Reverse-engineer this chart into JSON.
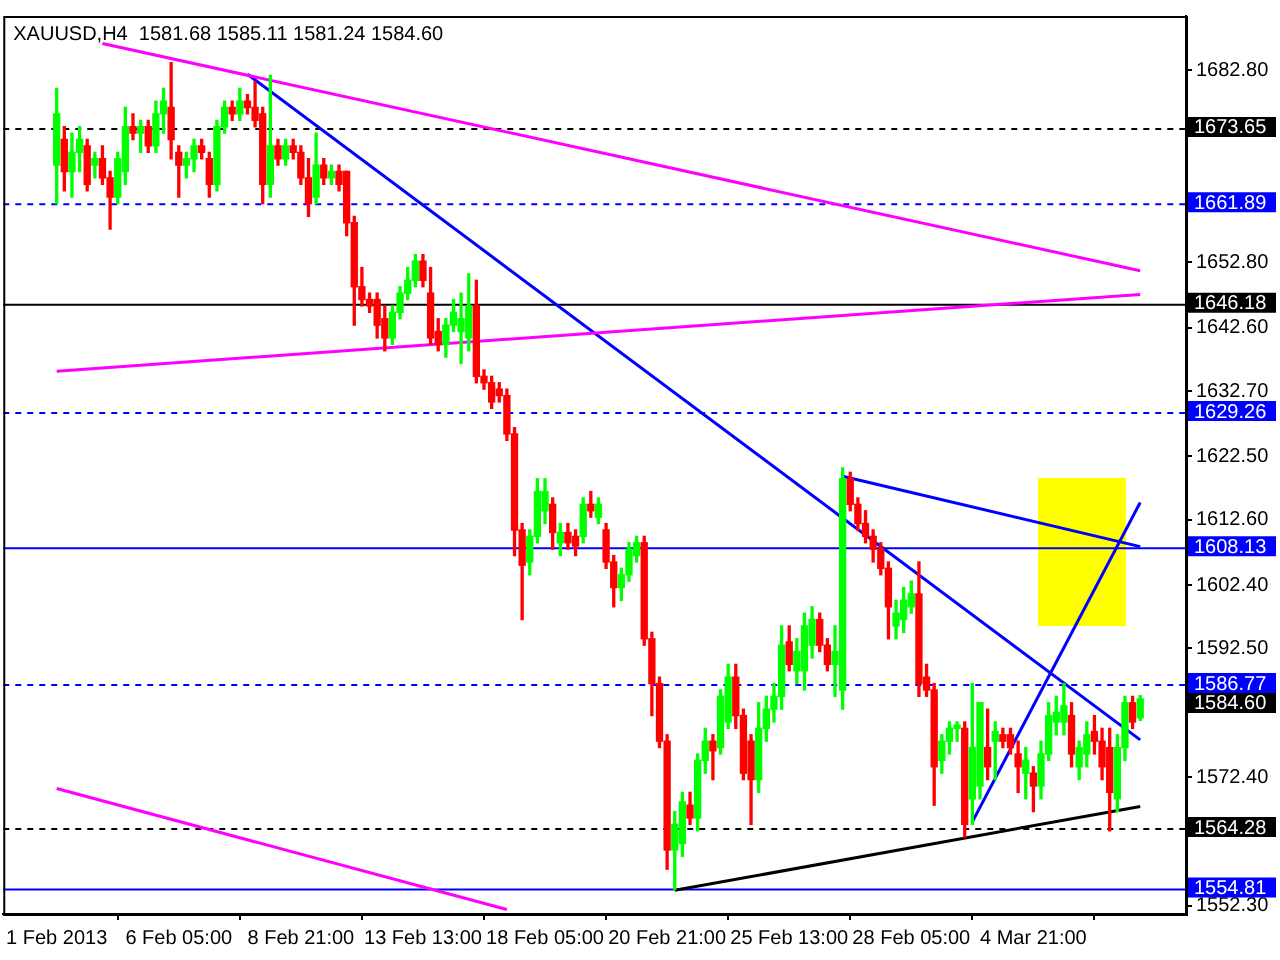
{
  "chart_data": {
    "type": "candlestick",
    "title": "XAUUSD,H4  1581.68 1585.11 1581.24 1584.60",
    "categories": [
      "1 Feb 2013",
      null,
      null,
      null,
      null,
      null,
      null,
      null,
      null,
      null,
      null,
      null,
      null,
      null,
      null,
      null,
      "6 Feb 05:00",
      null,
      null,
      null,
      null,
      null,
      null,
      null,
      null,
      null,
      null,
      null,
      null,
      null,
      null,
      null,
      "8 Feb 21:00",
      null,
      null,
      null,
      null,
      null,
      null,
      null,
      null,
      null,
      null,
      null,
      null,
      null,
      null,
      null,
      "13 Feb 13:00",
      null,
      null,
      null,
      null,
      null,
      null,
      null,
      null,
      null,
      null,
      null,
      null,
      null,
      null,
      null,
      "18 Feb 05:00",
      null,
      null,
      null,
      null,
      null,
      null,
      null,
      null,
      null,
      null,
      null,
      null,
      null,
      null,
      null,
      "20 Feb 21:00",
      null,
      null,
      null,
      null,
      null,
      null,
      null,
      null,
      null,
      null,
      null,
      null,
      null,
      null,
      null,
      "25 Feb 13:00",
      null,
      null,
      null,
      null,
      null,
      null,
      null,
      null,
      null,
      null,
      null,
      null,
      null,
      null,
      null,
      "28 Feb 05:00",
      null,
      null,
      null,
      null,
      null,
      null,
      null,
      null,
      null,
      null,
      null,
      null,
      null,
      null,
      null,
      "4 Mar 21:00",
      null,
      null,
      null,
      null,
      null,
      null,
      null,
      null,
      null,
      null,
      null,
      null,
      null,
      null
    ],
    "colors": [
      "#00ff00",
      "#ff0000",
      "#00ff00",
      "#00ff00",
      "#ff0000",
      "#00ff00",
      "#ff0000",
      "#ff0000",
      "#00ff00",
      "#00ff00",
      "#ff0000",
      "#00ff00",
      "#ff0000",
      "#00ff00",
      "#00ff00",
      "#ff0000",
      "#ff0000",
      "#00ff00",
      "#00ff00",
      "#ff0000",
      "#ff0000",
      "#00ff00",
      "#00ff00",
      "#ff0000",
      "#00ff00",
      "#ff0000",
      "#ff0000",
      "#ff0000",
      "#00ff00",
      "#ff0000",
      "#00ff00",
      "#ff0000",
      "#ff0000",
      "#ff0000",
      "#00ff00",
      "#ff0000",
      "#00ff00",
      "#ff0000",
      "#ff0000",
      "#ff0000",
      "#ff0000",
      "#ff0000",
      "#ff0000",
      "#ff0000",
      "#00ff00",
      "#00ff00",
      "#00ff00",
      "#00ff00",
      "#ff0000",
      "#ff0000",
      "#ff0000",
      "#00ff00",
      "#00ff00",
      "#00ff00",
      "#00ff00",
      "#ff0000",
      "#ff0000",
      "#ff0000",
      "#ff0000",
      "#ff0000",
      "#ff0000",
      "#ff0000",
      "#00ff00",
      "#00ff00",
      "#00ff00",
      "#ff0000",
      "#00ff00",
      "#ff0000",
      "#ff0000",
      "#00ff00",
      "#ff0000",
      "#00ff00",
      "#ff0000",
      "#ff0000",
      "#00ff00",
      "#00ff00",
      "#00ff00",
      "#ff0000",
      "#ff0000",
      "#ff0000",
      "#ff0000",
      "#00ff00",
      "#00ff00",
      "#ff0000",
      "#00ff00",
      "#00ff00",
      "#ff0000",
      "#00ff00",
      "#00ff00",
      "#ff0000",
      "#ff0000",
      "#ff0000",
      "#00ff00",
      "#00ff00",
      "#00ff00",
      "#00ff00",
      "#ff0000",
      "#00ff00",
      "#00ff00",
      "#00ff00",
      "#ff0000",
      "#ff0000",
      "#00ff00",
      "#00ff00",
      "#ff0000",
      "#ff0000",
      "#ff0000",
      "#ff0000",
      "#ff0000",
      "#ff0000",
      "#00ff00",
      "#00ff00",
      "#00ff00",
      "#ff0000",
      "#ff0000",
      "#ff0000",
      "#00ff00",
      "#00ff00",
      "#00ff00",
      "#ff0000",
      "#00ff00",
      "#00ff00",
      "#ff0000",
      "#00ff00",
      "#ff0000",
      "#ff0000",
      "#ff0000",
      "#00ff00",
      "#ff0000",
      "#00ff00",
      "#00ff00",
      "#00ff00",
      "#00ff00",
      "#ff0000",
      "#00ff00",
      "#00ff00",
      "#ff0000",
      "#ff0000",
      "#ff0000",
      "#00ff00",
      "#00ff00",
      "#ff0000",
      "#00ff00"
    ],
    "ohlc": [
      [
        1668,
        1680,
        1662,
        1676
      ],
      [
        1672,
        1674,
        1664,
        1667
      ],
      [
        1667,
        1673,
        1663,
        1670
      ],
      [
        1670,
        1674,
        1667,
        1672
      ],
      [
        1671,
        1672,
        1664,
        1665
      ],
      [
        1668,
        1670,
        1666,
        1669
      ],
      [
        1669,
        1671,
        1665,
        1666
      ],
      [
        1666,
        1667,
        1658,
        1663
      ],
      [
        1663,
        1670,
        1662,
        1669
      ],
      [
        1667,
        1677,
        1665,
        1674
      ],
      [
        1674,
        1676,
        1672,
        1673
      ],
      [
        1673,
        1675,
        1670,
        1674
      ],
      [
        1674,
        1675,
        1670,
        1671
      ],
      [
        1671,
        1678,
        1670,
        1676
      ],
      [
        1676,
        1680,
        1673,
        1678
      ],
      [
        1677,
        1684,
        1669,
        1672
      ],
      [
        1670,
        1671,
        1663,
        1668
      ],
      [
        1668,
        1670,
        1666,
        1669
      ],
      [
        1669,
        1672,
        1667,
        1671
      ],
      [
        1671,
        1672,
        1669,
        1670
      ],
      [
        1669,
        1670,
        1663,
        1665
      ],
      [
        1665,
        1675,
        1664,
        1674
      ],
      [
        1674,
        1678,
        1673,
        1677
      ],
      [
        1677,
        1678,
        1675,
        1676
      ],
      [
        1676,
        1680,
        1675,
        1678
      ],
      [
        1678,
        1679,
        1676,
        1677
      ],
      [
        1677,
        1681,
        1674,
        1675
      ],
      [
        1676,
        1677,
        1662,
        1665
      ],
      [
        1665,
        1682,
        1663,
        1671
      ],
      [
        1671,
        1672,
        1668,
        1669
      ],
      [
        1669,
        1672,
        1668,
        1671
      ],
      [
        1671,
        1672,
        1669,
        1670
      ],
      [
        1670,
        1671,
        1665,
        1666
      ],
      [
        1666,
        1669,
        1660,
        1662
      ],
      [
        1663,
        1673,
        1662,
        1668
      ],
      [
        1668,
        1669,
        1665,
        1666
      ],
      [
        1666,
        1668,
        1665,
        1667
      ],
      [
        1667,
        1668,
        1664,
        1665
      ],
      [
        1667,
        1667,
        1657,
        1659
      ],
      [
        1659,
        1660,
        1643,
        1649
      ],
      [
        1649,
        1652,
        1646,
        1647
      ],
      [
        1647,
        1648,
        1645,
        1646
      ],
      [
        1647,
        1648,
        1641,
        1643
      ],
      [
        1644,
        1646,
        1639,
        1641
      ],
      [
        1641,
        1646,
        1640,
        1645
      ],
      [
        1645,
        1649,
        1644,
        1648
      ],
      [
        1648,
        1652,
        1647,
        1650
      ],
      [
        1650,
        1654,
        1649,
        1653
      ],
      [
        1653,
        1654,
        1649,
        1650
      ],
      [
        1648,
        1652,
        1640,
        1641
      ],
      [
        1642,
        1644,
        1639,
        1640
      ],
      [
        1640,
        1644,
        1638,
        1643
      ],
      [
        1643,
        1647,
        1642,
        1645
      ],
      [
        1642,
        1648,
        1637,
        1644
      ],
      [
        1641,
        1651,
        1639,
        1646
      ],
      [
        1646,
        1650,
        1634,
        1635
      ],
      [
        1635,
        1636,
        1633,
        1634
      ],
      [
        1634,
        1635,
        1630,
        1631
      ],
      [
        1633,
        1634,
        1631,
        1632
      ],
      [
        1632,
        1633,
        1625,
        1626
      ],
      [
        1626,
        1627,
        1607,
        1611
      ],
      [
        1611,
        1612,
        1597,
        1605.5
      ],
      [
        1606,
        1611,
        1604,
        1610
      ],
      [
        1610,
        1619,
        1609,
        1617
      ],
      [
        1614,
        1619,
        1612,
        1617
      ],
      [
        1615,
        1616,
        1608,
        1610.6
      ],
      [
        1609,
        1612,
        1607,
        1610.6
      ],
      [
        1610.6,
        1612,
        1608,
        1609
      ],
      [
        1610,
        1611,
        1607,
        1608.5
      ],
      [
        1610,
        1616,
        1609,
        1615
      ],
      [
        1615,
        1617,
        1613,
        1614
      ],
      [
        1613,
        1616,
        1612,
        1615
      ],
      [
        1611,
        1612,
        1605,
        1606
      ],
      [
        1606,
        1607,
        1599,
        1602
      ],
      [
        1602,
        1605,
        1600,
        1604
      ],
      [
        1604,
        1609,
        1603,
        1608
      ],
      [
        1607,
        1610,
        1606,
        1609
      ],
      [
        1609,
        1610,
        1593,
        1594
      ],
      [
        1594,
        1595,
        1582,
        1587
      ],
      [
        1587,
        1588,
        1577,
        1578
      ],
      [
        1578,
        1579,
        1558,
        1561
      ],
      [
        1561,
        1567,
        1554.8,
        1565
      ],
      [
        1562,
        1570,
        1560,
        1568.5
      ],
      [
        1568,
        1570,
        1565,
        1566
      ],
      [
        1566,
        1576,
        1564,
        1575
      ],
      [
        1575,
        1580,
        1573,
        1578
      ],
      [
        1578,
        1579,
        1572,
        1576.5
      ],
      [
        1577,
        1586,
        1576,
        1585
      ],
      [
        1581,
        1590,
        1580,
        1588
      ],
      [
        1588,
        1590,
        1580,
        1582
      ],
      [
        1582,
        1583,
        1572,
        1573
      ],
      [
        1578,
        1579,
        1565,
        1572
      ],
      [
        1572,
        1584,
        1570,
        1580
      ],
      [
        1580,
        1585,
        1578,
        1583
      ],
      [
        1583,
        1587,
        1581,
        1585
      ],
      [
        1585,
        1596,
        1583,
        1593
      ],
      [
        1593.5,
        1596,
        1589,
        1590
      ],
      [
        1589,
        1594,
        1587,
        1592
      ],
      [
        1589,
        1598,
        1586,
        1596
      ],
      [
        1593,
        1599,
        1591,
        1597
      ],
      [
        1597,
        1598,
        1592,
        1593
      ],
      [
        1593,
        1594,
        1589,
        1590
      ],
      [
        1590,
        1596,
        1585,
        1592
      ],
      [
        1586,
        1620.7,
        1583,
        1619
      ],
      [
        1619,
        1620,
        1614,
        1615
      ],
      [
        1615,
        1616,
        1611,
        1612
      ],
      [
        1612,
        1614,
        1609,
        1610
      ],
      [
        1610,
        1611,
        1606,
        1608
      ],
      [
        1608,
        1609,
        1604,
        1605
      ],
      [
        1605,
        1606,
        1594,
        1599
      ],
      [
        1596,
        1600,
        1594,
        1598
      ],
      [
        1597,
        1602,
        1595,
        1600
      ],
      [
        1599,
        1603,
        1598,
        1601
      ],
      [
        1601,
        1606,
        1585,
        1587
      ],
      [
        1588,
        1590,
        1585,
        1586
      ],
      [
        1586,
        1587,
        1568,
        1574
      ],
      [
        1575,
        1579,
        1573,
        1578
      ],
      [
        1578,
        1581,
        1576,
        1580
      ],
      [
        1580,
        1581,
        1578,
        1580.5
      ],
      [
        1580,
        1581,
        1563,
        1565
      ],
      [
        1569,
        1587,
        1565,
        1577
      ],
      [
        1571,
        1584,
        1569,
        1584
      ],
      [
        1577,
        1583,
        1572,
        1574
      ],
      [
        1578,
        1581,
        1572,
        1579.5
      ],
      [
        1579,
        1580,
        1577,
        1578
      ],
      [
        1579,
        1580,
        1576,
        1577
      ],
      [
        1576,
        1578,
        1570,
        1574
      ],
      [
        1573,
        1577,
        1569,
        1575
      ],
      [
        1573,
        1574,
        1567,
        1571
      ],
      [
        1571,
        1578,
        1569,
        1576
      ],
      [
        1576,
        1584,
        1575,
        1582
      ],
      [
        1581,
        1585,
        1579,
        1582.5
      ],
      [
        1581,
        1587,
        1579,
        1583.5
      ],
      [
        1582,
        1584,
        1574,
        1576
      ],
      [
        1574,
        1578,
        1572,
        1577
      ],
      [
        1576,
        1581,
        1574,
        1579
      ],
      [
        1579.5,
        1582,
        1576,
        1578
      ],
      [
        1578,
        1580,
        1572,
        1574
      ],
      [
        1577,
        1580,
        1564,
        1570
      ],
      [
        1569,
        1579,
        1567,
        1577
      ],
      [
        1577,
        1585,
        1575,
        1584
      ],
      [
        1584,
        1585,
        1580,
        1581
      ],
      [
        1581.68,
        1585.11,
        1581.24,
        1584.6
      ]
    ],
    "series": [
      {
        "type": "line",
        "color": "#ff00ff",
        "values": [
          null,
          null,
          null,
          null,
          null,
          null,
          1687.0,
          null,
          null,
          null,
          null,
          null,
          null,
          null,
          null,
          null,
          null,
          null,
          null,
          null,
          null,
          null,
          null,
          null,
          null,
          null,
          null,
          null,
          null,
          null,
          null,
          null,
          null,
          null,
          null,
          null,
          null,
          null,
          null,
          null,
          null,
          null,
          null,
          null,
          null,
          null,
          null,
          null,
          null,
          null,
          null,
          null,
          null,
          null,
          null,
          null,
          null,
          null,
          null,
          null,
          null,
          null,
          null,
          null,
          null,
          null,
          null,
          null,
          null,
          null,
          null,
          null,
          null,
          null,
          null,
          null,
          null,
          null,
          null,
          null,
          null,
          null,
          null,
          null,
          null,
          null,
          null,
          null,
          null,
          null,
          null,
          null,
          null,
          null,
          null,
          null,
          null,
          null,
          null,
          null,
          null,
          null,
          null,
          null,
          null,
          null,
          null,
          null,
          null,
          null,
          null,
          null,
          null,
          null,
          null,
          null,
          null,
          null,
          null,
          null,
          null,
          null,
          null,
          null,
          null,
          null,
          null,
          null,
          null,
          null,
          null,
          null,
          null,
          null,
          null,
          null,
          null,
          null,
          null,
          null,
          null,
          null,
          1651.5
        ]
      },
      {
        "type": "line",
        "color": "#ff00ff",
        "values": [
          1635.8,
          null,
          null,
          null,
          null,
          null,
          null,
          null,
          null,
          null,
          null,
          null,
          null,
          null,
          null,
          null,
          null,
          null,
          null,
          null,
          null,
          null,
          null,
          null,
          null,
          null,
          null,
          null,
          null,
          null,
          null,
          null,
          null,
          null,
          null,
          null,
          null,
          null,
          null,
          null,
          null,
          null,
          null,
          null,
          null,
          null,
          null,
          null,
          null,
          null,
          null,
          null,
          null,
          null,
          null,
          null,
          null,
          null,
          null,
          null,
          null,
          null,
          null,
          null,
          null,
          null,
          null,
          null,
          null,
          null,
          null,
          null,
          null,
          null,
          null,
          null,
          null,
          null,
          null,
          null,
          null,
          null,
          null,
          null,
          null,
          null,
          null,
          null,
          null,
          null,
          null,
          null,
          null,
          null,
          null,
          null,
          null,
          null,
          null,
          null,
          null,
          null,
          null,
          null,
          null,
          null,
          null,
          null,
          null,
          null,
          null,
          null,
          null,
          null,
          null,
          null,
          null,
          null,
          null,
          null,
          null,
          null,
          null,
          null,
          null,
          null,
          null,
          null,
          null,
          null,
          null,
          null,
          null,
          null,
          null,
          null,
          null,
          null,
          null,
          null,
          null,
          null,
          1647.8
        ]
      },
      {
        "type": "line",
        "color": "#ff00ff",
        "values": [
          1570.6,
          null,
          null,
          null,
          null,
          null,
          null,
          null,
          null,
          null,
          null,
          null,
          null,
          null,
          null,
          null,
          null,
          null,
          null,
          null,
          null,
          null,
          null,
          null,
          null,
          null,
          null,
          null,
          null,
          null,
          null,
          null,
          null,
          null,
          null,
          null,
          null,
          null,
          null,
          null,
          null,
          null,
          null,
          null,
          null,
          null,
          null,
          null,
          null,
          null,
          null,
          null,
          null,
          null,
          null,
          null,
          null,
          null,
          null,
          1551.7,
          null,
          null,
          null,
          null,
          null,
          null,
          null,
          null,
          null,
          null,
          null,
          null,
          null,
          null,
          null,
          null,
          null,
          null,
          null,
          null,
          null,
          null,
          null,
          null,
          null,
          null,
          null,
          null,
          null,
          null,
          null,
          null,
          null,
          null,
          null,
          null,
          null,
          null,
          null,
          null,
          null,
          null,
          null,
          null,
          null,
          null,
          null,
          null,
          null,
          null,
          null,
          null,
          null,
          null,
          null,
          null,
          null,
          null,
          null,
          null,
          null,
          null,
          null,
          null,
          null,
          null,
          null,
          null,
          null,
          null,
          null,
          null,
          null,
          null,
          null,
          null,
          null,
          null,
          null,
          null,
          null,
          null,
          null
        ]
      },
      {
        "type": "line",
        "color": "#0000ff",
        "values": [
          null,
          null,
          null,
          null,
          null,
          null,
          null,
          null,
          null,
          null,
          null,
          null,
          null,
          null,
          null,
          null,
          null,
          null,
          null,
          null,
          null,
          null,
          null,
          null,
          null,
          1682.2,
          null,
          null,
          null,
          null,
          null,
          null,
          null,
          null,
          null,
          null,
          null,
          null,
          null,
          null,
          null,
          null,
          null,
          null,
          null,
          null,
          null,
          null,
          null,
          null,
          null,
          null,
          null,
          null,
          null,
          null,
          null,
          null,
          null,
          null,
          null,
          null,
          null,
          null,
          null,
          null,
          null,
          null,
          null,
          null,
          null,
          null,
          null,
          null,
          null,
          null,
          null,
          null,
          null,
          null,
          null,
          null,
          null,
          null,
          null,
          null,
          null,
          null,
          null,
          null,
          null,
          null,
          null,
          null,
          null,
          null,
          null,
          null,
          null,
          null,
          null,
          null,
          null,
          null,
          null,
          null,
          null,
          null,
          null,
          null,
          null,
          null,
          null,
          null,
          null,
          null,
          null,
          null,
          null,
          null,
          null,
          null,
          null,
          null,
          null,
          null,
          null,
          null,
          null,
          null,
          null,
          null,
          null,
          null,
          null,
          null,
          null,
          null,
          null,
          null,
          null,
          null,
          1578.2
        ]
      },
      {
        "type": "line",
        "color": "#0000ff",
        "values": [
          null,
          null,
          null,
          null,
          null,
          null,
          null,
          null,
          null,
          null,
          null,
          null,
          null,
          null,
          null,
          null,
          null,
          null,
          null,
          null,
          null,
          null,
          null,
          null,
          null,
          null,
          null,
          null,
          null,
          null,
          null,
          null,
          null,
          null,
          null,
          null,
          null,
          null,
          null,
          null,
          null,
          null,
          null,
          null,
          null,
          null,
          null,
          null,
          null,
          null,
          null,
          null,
          null,
          null,
          null,
          null,
          null,
          null,
          null,
          null,
          null,
          null,
          null,
          null,
          null,
          null,
          null,
          null,
          null,
          null,
          null,
          null,
          null,
          null,
          null,
          null,
          null,
          null,
          null,
          null,
          null,
          null,
          null,
          null,
          null,
          null,
          null,
          null,
          null,
          null,
          null,
          null,
          null,
          null,
          null,
          null,
          null,
          null,
          null,
          null,
          null,
          null,
          null,
          1619.4,
          null,
          null,
          null,
          null,
          null,
          null,
          null,
          null,
          null,
          null,
          null,
          null,
          null,
          null,
          null,
          null,
          null,
          null,
          null,
          null,
          null,
          null,
          null,
          null,
          null,
          null,
          null,
          null,
          null,
          null,
          null,
          null,
          null,
          null,
          null,
          null,
          null,
          null,
          1608.4
        ]
      },
      {
        "type": "line",
        "color": "#0000ff",
        "values": [
          null,
          null,
          null,
          null,
          null,
          null,
          null,
          null,
          null,
          null,
          null,
          null,
          null,
          null,
          null,
          null,
          null,
          null,
          null,
          null,
          null,
          null,
          null,
          null,
          null,
          null,
          null,
          null,
          null,
          null,
          null,
          null,
          null,
          null,
          null,
          null,
          null,
          null,
          null,
          null,
          null,
          null,
          null,
          null,
          null,
          null,
          null,
          null,
          null,
          null,
          null,
          null,
          null,
          null,
          null,
          null,
          null,
          null,
          null,
          null,
          null,
          null,
          null,
          null,
          null,
          null,
          null,
          null,
          null,
          null,
          null,
          null,
          null,
          null,
          null,
          null,
          null,
          null,
          null,
          null,
          null,
          null,
          null,
          null,
          null,
          null,
          null,
          null,
          null,
          null,
          null,
          null,
          null,
          null,
          null,
          null,
          null,
          null,
          null,
          null,
          null,
          null,
          null,
          null,
          null,
          null,
          null,
          null,
          null,
          null,
          null,
          null,
          null,
          null,
          null,
          null,
          null,
          null,
          null,
          null,
          1565.4,
          null,
          null,
          null,
          null,
          null,
          null,
          null,
          null,
          null,
          null,
          null,
          null,
          null,
          null,
          null,
          null,
          null,
          null,
          null,
          null,
          null,
          1615.3
        ]
      },
      {
        "type": "line",
        "color": "#000000",
        "values": [
          null,
          null,
          null,
          null,
          null,
          null,
          null,
          null,
          null,
          null,
          null,
          null,
          null,
          null,
          null,
          null,
          null,
          null,
          null,
          null,
          null,
          null,
          null,
          null,
          null,
          null,
          null,
          null,
          null,
          null,
          null,
          null,
          null,
          null,
          null,
          null,
          null,
          null,
          null,
          null,
          null,
          null,
          null,
          null,
          null,
          null,
          null,
          null,
          null,
          null,
          null,
          null,
          null,
          null,
          null,
          null,
          null,
          null,
          null,
          null,
          null,
          null,
          null,
          null,
          null,
          null,
          null,
          null,
          null,
          null,
          null,
          null,
          null,
          null,
          null,
          null,
          null,
          null,
          null,
          null,
          null,
          1554.7,
          null,
          null,
          null,
          null,
          null,
          null,
          null,
          null,
          null,
          null,
          null,
          null,
          null,
          null,
          null,
          null,
          null,
          null,
          null,
          null,
          null,
          null,
          null,
          null,
          null,
          null,
          null,
          null,
          null,
          null,
          null,
          null,
          null,
          null,
          null,
          null,
          null,
          null,
          null,
          null,
          null,
          null,
          null,
          null,
          null,
          null,
          null,
          null,
          null,
          null,
          null,
          null,
          null,
          null,
          null,
          null,
          null,
          null,
          null,
          null,
          1567.8
        ]
      }
    ],
    "ylim": [
      1551.0,
      1691.3
    ],
    "yticks": [
      {
        "value": 1682.8,
        "label": "1682.80"
      },
      {
        "value": 1652.8,
        "label": "1652.80"
      },
      {
        "value": 1642.6,
        "label": "1642.60"
      },
      {
        "value": 1632.7,
        "label": "1632.70"
      },
      {
        "value": 1622.5,
        "label": "1622.50"
      },
      {
        "value": 1612.6,
        "label": "1612.60"
      },
      {
        "value": 1602.4,
        "label": "1602.40"
      },
      {
        "value": 1592.5,
        "label": "1592.50"
      },
      {
        "value": 1572.4,
        "label": "1572.40"
      },
      {
        "value": 1552.3,
        "label": "1552.30"
      }
    ],
    "ref_lines": [
      {
        "axis": "y",
        "value": 1673.65,
        "label": "1673.65",
        "color": "#000000",
        "line_style": "dashed"
      },
      {
        "axis": "y",
        "value": 1661.89,
        "label": "1661.89",
        "color": "#0000ff",
        "line_style": "dashed"
      },
      {
        "axis": "y",
        "value": 1646.18,
        "label": "1646.18",
        "color": "#000000",
        "line_style": "solid"
      },
      {
        "axis": "y",
        "value": 1629.26,
        "label": "1629.26",
        "color": "#0000ff",
        "line_style": "dashed"
      },
      {
        "axis": "y",
        "value": 1608.13,
        "label": "1608.13",
        "color": "#0000ff",
        "line_style": "solid"
      },
      {
        "axis": "y",
        "value": 1586.77,
        "label": "1586.77",
        "color": "#0000ff",
        "line_style": "dashed"
      },
      {
        "axis": "y",
        "value": 1564.28,
        "label": "1564.28",
        "color": "#000000",
        "line_style": "dashed"
      },
      {
        "axis": "y",
        "value": 1554.81,
        "label": "1554.81",
        "color": "#0000ff",
        "line_style": "solid"
      }
    ],
    "annotations": [
      "1584.60"
    ],
    "grid": false,
    "legend": false
  }
}
